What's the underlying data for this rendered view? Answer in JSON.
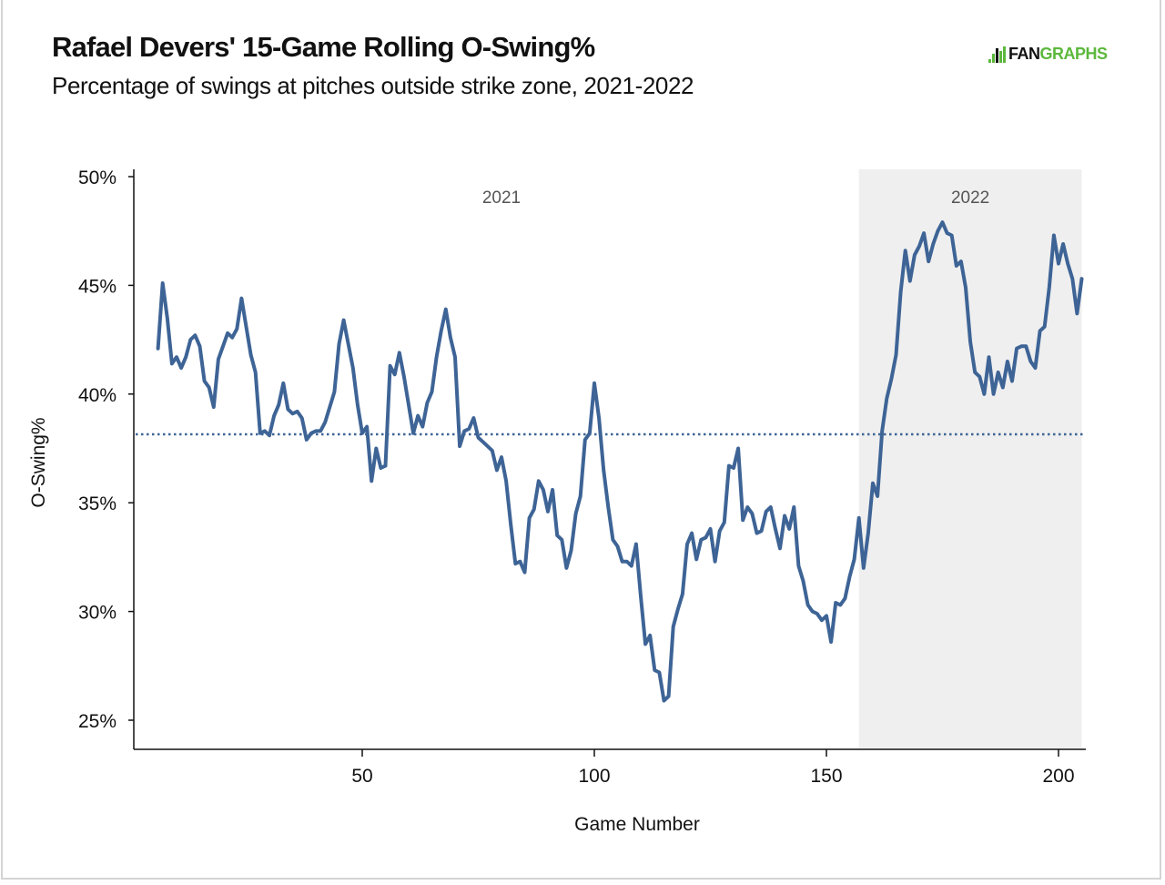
{
  "header": {
    "title": "Rafael Devers' 15-Game Rolling O-Swing%",
    "subtitle": "Percentage of swings at pitches outside strike zone, 2021-2022",
    "logo_fan": "FAN",
    "logo_graphs": "GRAPHS"
  },
  "colors": {
    "line": "#3e6496",
    "shade": "#efefef",
    "axis": "#111111",
    "logo_green": "#5cb83c"
  },
  "chart_data": {
    "type": "line",
    "title": "Rafael Devers' 15-Game Rolling O-Swing%",
    "subtitle": "Percentage of swings at pitches outside strike zone, 2021-2022",
    "xlabel": "Game Number",
    "ylabel": "O-Swing%",
    "xlim": [
      0,
      206
    ],
    "ylim": [
      23.7,
      50.3
    ],
    "x_ticks": [
      50,
      100,
      150,
      200
    ],
    "x_tick_labels": [
      "50",
      "100",
      "150",
      "200"
    ],
    "y_ticks": [
      25,
      30,
      35,
      40,
      45,
      50
    ],
    "y_tick_labels": [
      "25%",
      "30%",
      "35%",
      "40%",
      "45%",
      "50%"
    ],
    "reference_line": {
      "value": 38.15,
      "style": "dotted"
    },
    "shaded_region": {
      "x_start": 157,
      "x_end": 205,
      "label": "2022"
    },
    "region_labels": [
      {
        "x": 80,
        "label": "2021"
      },
      {
        "x": 181,
        "label": "2022"
      }
    ],
    "grid": false,
    "series": [
      {
        "name": "15-Game Rolling O-Swing%",
        "x": [
          6,
          7,
          8,
          9,
          10,
          11,
          12,
          13,
          14,
          15,
          16,
          17,
          18,
          19,
          20,
          21,
          22,
          23,
          24,
          25,
          26,
          27,
          28,
          29,
          30,
          31,
          32,
          33,
          34,
          35,
          36,
          37,
          38,
          39,
          40,
          41,
          42,
          43,
          44,
          45,
          46,
          47,
          48,
          49,
          50,
          51,
          52,
          53,
          54,
          55,
          56,
          57,
          58,
          59,
          60,
          61,
          62,
          63,
          64,
          65,
          66,
          67,
          68,
          69,
          70,
          71,
          72,
          73,
          74,
          75,
          76,
          77,
          78,
          79,
          80,
          81,
          82,
          83,
          84,
          85,
          86,
          87,
          88,
          89,
          90,
          91,
          92,
          93,
          94,
          95,
          96,
          97,
          98,
          99,
          100,
          101,
          102,
          103,
          104,
          105,
          106,
          107,
          108,
          109,
          110,
          111,
          112,
          113,
          114,
          115,
          116,
          117,
          118,
          119,
          120,
          121,
          122,
          123,
          124,
          125,
          126,
          127,
          128,
          129,
          130,
          131,
          132,
          133,
          134,
          135,
          136,
          137,
          138,
          139,
          140,
          141,
          142,
          143,
          144,
          145,
          146,
          147,
          148,
          149,
          150,
          151,
          152,
          153,
          154,
          155,
          156,
          157,
          158,
          159,
          160,
          161,
          162,
          163,
          164,
          165,
          166,
          167,
          168,
          169,
          170,
          171,
          172,
          173,
          174,
          175,
          176,
          177,
          178,
          179,
          180,
          181,
          182,
          183,
          184,
          185,
          186,
          187,
          188,
          189,
          190,
          191,
          192,
          193,
          194,
          195,
          196,
          197,
          198,
          199,
          200,
          201,
          202,
          203,
          204,
          205
        ],
        "y": [
          42.1,
          45.1,
          43.5,
          41.4,
          41.7,
          41.2,
          41.7,
          42.5,
          42.7,
          42.2,
          40.6,
          40.3,
          39.4,
          41.6,
          42.2,
          42.8,
          42.6,
          43.0,
          44.4,
          43.1,
          41.8,
          41.0,
          38.2,
          38.3,
          38.1,
          39.0,
          39.5,
          40.5,
          39.3,
          39.1,
          39.2,
          38.9,
          37.9,
          38.2,
          38.3,
          38.3,
          38.7,
          39.4,
          40.1,
          42.3,
          43.4,
          42.3,
          41.2,
          39.5,
          38.2,
          38.5,
          36.0,
          37.5,
          36.6,
          36.7,
          41.3,
          40.9,
          41.9,
          40.8,
          39.5,
          38.2,
          39.0,
          38.5,
          39.6,
          40.1,
          41.7,
          42.9,
          43.9,
          42.6,
          41.7,
          37.6,
          38.3,
          38.4,
          38.9,
          38.0,
          37.8,
          37.6,
          37.4,
          36.5,
          37.1,
          36.0,
          34.0,
          32.2,
          32.3,
          31.8,
          34.3,
          34.7,
          36.0,
          35.6,
          34.6,
          35.6,
          33.5,
          33.3,
          32.0,
          32.8,
          34.5,
          35.3,
          37.9,
          38.2,
          40.5,
          38.9,
          36.5,
          34.8,
          33.3,
          33.0,
          32.3,
          32.3,
          32.1,
          33.1,
          30.7,
          28.5,
          28.9,
          27.3,
          27.2,
          25.9,
          26.1,
          29.3,
          30.1,
          30.8,
          33.1,
          33.6,
          32.4,
          33.3,
          33.4,
          33.8,
          32.3,
          33.7,
          34.1,
          36.7,
          36.6,
          37.5,
          34.2,
          34.8,
          34.5,
          33.6,
          33.7,
          34.6,
          34.8,
          33.8,
          32.9,
          34.4,
          33.8,
          34.8,
          32.1,
          31.4,
          30.3,
          30.0,
          29.9,
          29.6,
          29.8,
          28.6,
          30.4,
          30.3,
          30.6,
          31.6,
          32.4,
          34.3,
          32.0,
          33.6,
          35.9,
          35.3,
          38.3,
          39.8,
          40.7,
          41.8,
          44.7,
          46.6,
          45.2,
          46.4,
          46.8,
          47.4,
          46.1,
          46.9,
          47.5,
          47.9,
          47.4,
          47.3,
          45.9,
          46.1,
          44.9,
          42.4,
          41.0,
          40.8,
          40.0,
          41.7,
          40.0,
          41.0,
          40.3,
          41.5,
          40.6,
          42.1,
          42.2,
          42.2,
          41.5,
          41.2,
          42.9,
          43.1,
          44.9,
          47.3,
          46.0,
          46.9,
          46.0,
          45.3,
          43.7,
          45.3
        ]
      }
    ]
  }
}
